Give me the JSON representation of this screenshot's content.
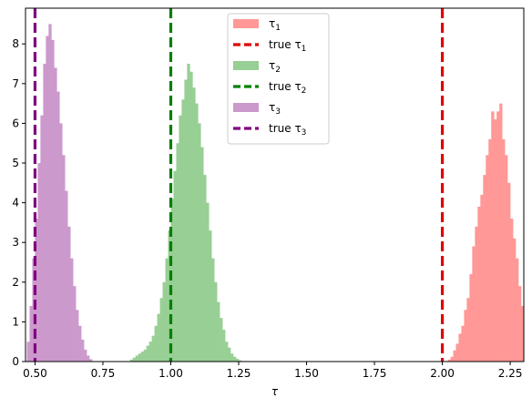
{
  "chart_data": {
    "type": "bar",
    "subtype": "histogram",
    "title": "",
    "xlabel": "τ",
    "ylabel": "",
    "xlim": [
      0.465,
      2.3
    ],
    "ylim": [
      0,
      8.9
    ],
    "xticks": [
      0.5,
      0.75,
      1.0,
      1.25,
      1.5,
      1.75,
      2.0,
      2.25
    ],
    "xtick_labels": [
      "0.50",
      "0.75",
      "1.00",
      "1.25",
      "1.50",
      "1.75",
      "2.00",
      "2.25"
    ],
    "yticks": [
      0,
      1,
      2,
      3,
      4,
      5,
      6,
      7,
      8
    ],
    "ytick_labels": [
      "0",
      "1",
      "2",
      "3",
      "4",
      "5",
      "6",
      "7",
      "8"
    ],
    "grid": false,
    "legend_position": "top-center",
    "series": [
      {
        "name": "τ₁",
        "label_text": "τ",
        "label_sub": "1",
        "color": "#ff9896",
        "opacity": 1,
        "bin_width": 0.01,
        "bins": [
          [
            2.02,
            0.05
          ],
          [
            2.03,
            0.12
          ],
          [
            2.04,
            0.28
          ],
          [
            2.05,
            0.45
          ],
          [
            2.06,
            0.7
          ],
          [
            2.07,
            0.9
          ],
          [
            2.08,
            1.3
          ],
          [
            2.09,
            1.6
          ],
          [
            2.1,
            2.2
          ],
          [
            2.11,
            2.9
          ],
          [
            2.12,
            3.4
          ],
          [
            2.13,
            3.9
          ],
          [
            2.14,
            4.2
          ],
          [
            2.15,
            4.7
          ],
          [
            2.16,
            5.2
          ],
          [
            2.17,
            5.6
          ],
          [
            2.18,
            6.3
          ],
          [
            2.19,
            6.1
          ],
          [
            2.2,
            6.3
          ],
          [
            2.21,
            6.5
          ],
          [
            2.22,
            5.6
          ],
          [
            2.23,
            5.2
          ],
          [
            2.24,
            4.5
          ],
          [
            2.25,
            3.6
          ],
          [
            2.26,
            3.1
          ],
          [
            2.27,
            2.6
          ],
          [
            2.28,
            1.9
          ],
          [
            2.29,
            1.4
          ]
        ]
      },
      {
        "name": "τ₂",
        "label_text": "τ",
        "label_sub": "2",
        "color": "#98cf95",
        "opacity": 1,
        "bin_width": 0.01,
        "bins": [
          [
            0.85,
            0.05
          ],
          [
            0.86,
            0.1
          ],
          [
            0.87,
            0.15
          ],
          [
            0.88,
            0.2
          ],
          [
            0.89,
            0.25
          ],
          [
            0.9,
            0.3
          ],
          [
            0.91,
            0.4
          ],
          [
            0.92,
            0.5
          ],
          [
            0.93,
            0.65
          ],
          [
            0.94,
            0.9
          ],
          [
            0.95,
            1.2
          ],
          [
            0.96,
            1.6
          ],
          [
            0.97,
            2.0
          ],
          [
            0.98,
            2.6
          ],
          [
            0.99,
            3.3
          ],
          [
            1.0,
            4.1
          ],
          [
            1.01,
            4.8
          ],
          [
            1.02,
            5.5
          ],
          [
            1.03,
            6.2
          ],
          [
            1.04,
            6.6
          ],
          [
            1.05,
            7.1
          ],
          [
            1.06,
            7.5
          ],
          [
            1.07,
            7.3
          ],
          [
            1.08,
            6.9
          ],
          [
            1.09,
            6.5
          ],
          [
            1.1,
            6.0
          ],
          [
            1.11,
            5.4
          ],
          [
            1.12,
            4.7
          ],
          [
            1.13,
            4.0
          ],
          [
            1.14,
            3.3
          ],
          [
            1.15,
            2.6
          ],
          [
            1.16,
            2.0
          ],
          [
            1.17,
            1.5
          ],
          [
            1.18,
            1.1
          ],
          [
            1.19,
            0.8
          ],
          [
            1.2,
            0.5
          ],
          [
            1.21,
            0.35
          ],
          [
            1.22,
            0.2
          ],
          [
            1.23,
            0.12
          ],
          [
            1.24,
            0.07
          ],
          [
            1.25,
            0.03
          ]
        ]
      },
      {
        "name": "τ₃",
        "label_text": "τ",
        "label_sub": "3",
        "color": "#cc99cc",
        "opacity": 1,
        "bin_width": 0.01,
        "bins": [
          [
            0.47,
            0.5
          ],
          [
            0.48,
            1.4
          ],
          [
            0.49,
            2.6
          ],
          [
            0.5,
            3.6
          ],
          [
            0.51,
            5.0
          ],
          [
            0.52,
            6.2
          ],
          [
            0.53,
            7.5
          ],
          [
            0.54,
            8.2
          ],
          [
            0.55,
            8.5
          ],
          [
            0.56,
            8.1
          ],
          [
            0.57,
            7.4
          ],
          [
            0.58,
            6.8
          ],
          [
            0.59,
            6.0
          ],
          [
            0.6,
            5.2
          ],
          [
            0.61,
            4.3
          ],
          [
            0.62,
            3.4
          ],
          [
            0.63,
            2.6
          ],
          [
            0.64,
            1.9
          ],
          [
            0.65,
            1.3
          ],
          [
            0.66,
            0.9
          ],
          [
            0.67,
            0.55
          ],
          [
            0.68,
            0.3
          ],
          [
            0.69,
            0.15
          ],
          [
            0.7,
            0.06
          ]
        ]
      }
    ],
    "vlines": [
      {
        "name": "true τ₁",
        "label_text": "true τ",
        "label_sub": "1",
        "x": 2.0,
        "color": "#e00000",
        "style": "dashed"
      },
      {
        "name": "true τ₂",
        "label_text": "true τ",
        "label_sub": "2",
        "x": 1.0,
        "color": "#008000",
        "style": "dashed"
      },
      {
        "name": "true τ₃",
        "label_text": "true τ",
        "label_sub": "3",
        "x": 0.5,
        "color": "#800080",
        "style": "dashed"
      }
    ],
    "legend_order": [
      {
        "kind": "patch",
        "ref": "series",
        "index": 0
      },
      {
        "kind": "line",
        "ref": "vlines",
        "index": 0
      },
      {
        "kind": "patch",
        "ref": "series",
        "index": 1
      },
      {
        "kind": "line",
        "ref": "vlines",
        "index": 1
      },
      {
        "kind": "patch",
        "ref": "series",
        "index": 2
      },
      {
        "kind": "line",
        "ref": "vlines",
        "index": 2
      }
    ]
  }
}
